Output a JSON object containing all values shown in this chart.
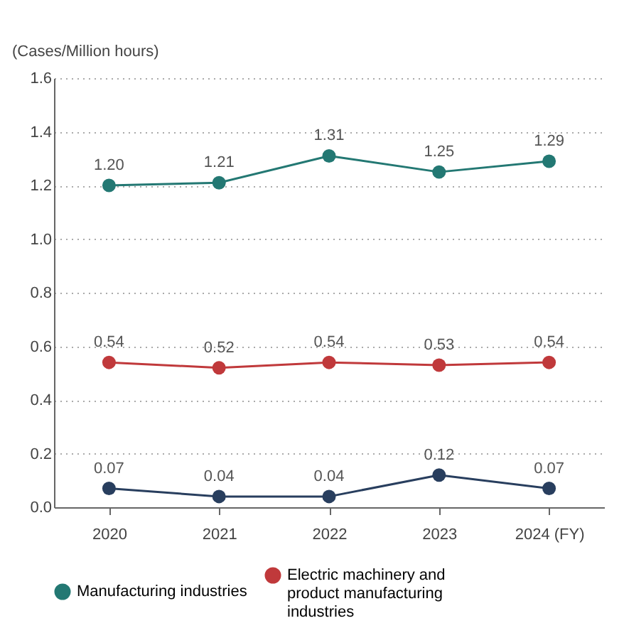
{
  "chart_data": {
    "type": "line",
    "ylabel": "(Cases/Million hours)",
    "categories": [
      "2020",
      "2021",
      "2022",
      "2023",
      "2024 (FY)"
    ],
    "series": [
      {
        "color": "#283e5e",
        "values": [
          0.07,
          0.04,
          0.04,
          0.12,
          0.07
        ],
        "value_labels": [
          "0.07",
          "0.04",
          "0.04",
          "0.12",
          "0.07"
        ]
      },
      {
        "name": "Manufacturing industries",
        "color": "#237873",
        "values": [
          1.2,
          1.21,
          1.31,
          1.25,
          1.29
        ],
        "value_labels": [
          "1.20",
          "1.21",
          "1.31",
          "1.25",
          "1.29"
        ]
      },
      {
        "name": "Electric machinery and product manufacturing industries",
        "color": "#c0393b",
        "values": [
          0.54,
          0.52,
          0.54,
          0.53,
          0.54
        ],
        "value_labels": [
          "0.54",
          "0.52",
          "0.54",
          "0.53",
          "0.54"
        ]
      }
    ],
    "ylim": [
      0,
      1.6
    ],
    "yticks": [
      {
        "value": 0,
        "label": "0.0"
      },
      0.2,
      0.4,
      0.6,
      0.8,
      {
        "value": 1,
        "label": "1.0"
      },
      1.2,
      1.4,
      1.6
    ],
    "grid": "y",
    "marker": "circle",
    "legend": "bottom"
  }
}
